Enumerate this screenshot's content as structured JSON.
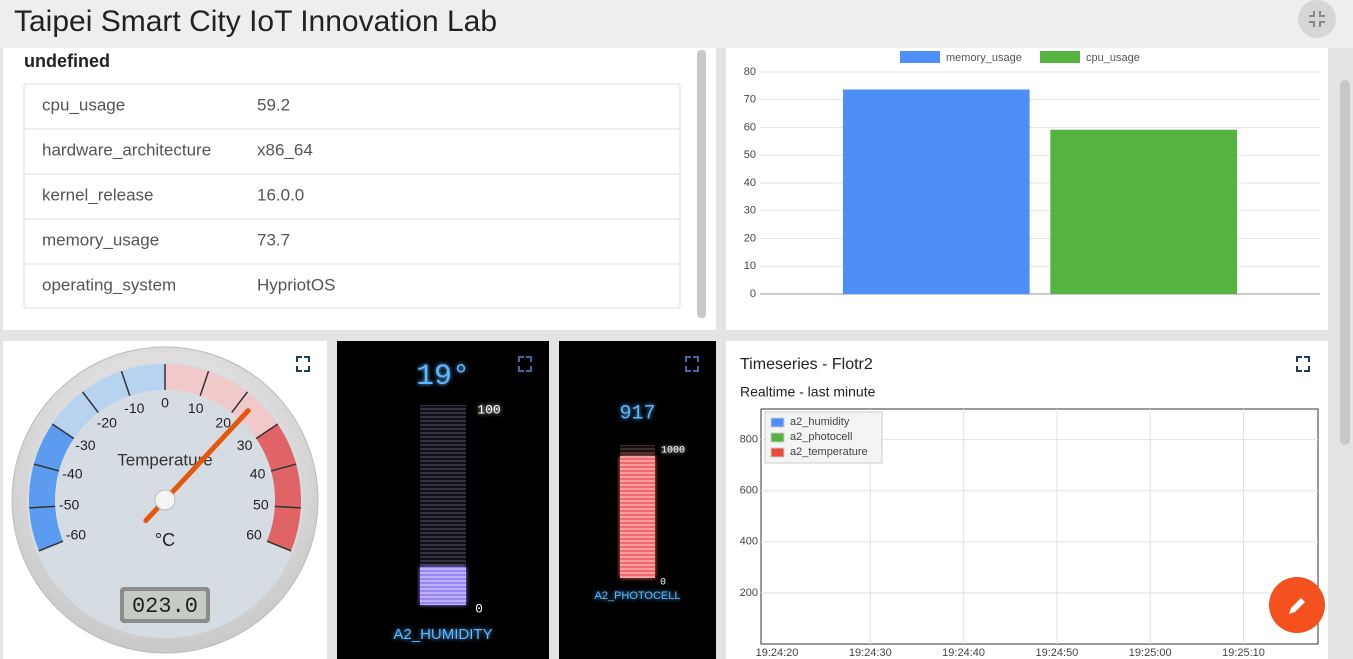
{
  "header": {
    "title": "Taipei Smart City IoT Innovation Lab"
  },
  "info_card": {
    "title": "undefined",
    "rows": [
      [
        "cpu_usage",
        59.2
      ],
      [
        "hardware_architecture",
        "x86_64"
      ],
      [
        "kernel_release",
        "16.0.0"
      ],
      [
        "memory_usage",
        73.7
      ],
      [
        "operating_system",
        "HypriotOS"
      ]
    ]
  },
  "bar_chart": {
    "type": "bar",
    "series": [
      {
        "name": "memory_usage",
        "color": "#4e8ff7",
        "values": [
          73.7
        ]
      },
      {
        "name": "cpu_usage",
        "color": "#55b33f",
        "values": [
          59.2
        ]
      }
    ],
    "ylim": [
      0,
      80
    ],
    "yticks": [
      0,
      10,
      20,
      30,
      40,
      50,
      60,
      70,
      80
    ],
    "grid": true,
    "legend": "top"
  },
  "gauge": {
    "type": "gauge",
    "label": "Temperature",
    "unit": "°C",
    "min": -60,
    "max": 60,
    "ticks": [
      -60,
      -50,
      -40,
      -30,
      -20,
      -10,
      0,
      10,
      20,
      30,
      40,
      50,
      60
    ],
    "bands": [
      {
        "from": -60,
        "to": -30,
        "color": "#5b9bf0"
      },
      {
        "from": -30,
        "to": 0,
        "color": "#b7d3f0"
      },
      {
        "from": 0,
        "to": 30,
        "color": "#f2c9cb"
      },
      {
        "from": 30,
        "to": 60,
        "color": "#e06466"
      }
    ],
    "value": 23,
    "display": "023.0"
  },
  "humidity": {
    "name": "A2_HUMIDITY",
    "value": 19,
    "display": "19°",
    "min": 0,
    "max": 100,
    "color": "#9a86f5"
  },
  "photocell": {
    "name": "A2_PHOTOCELL",
    "value": 917,
    "display": "917",
    "min": 0,
    "max": 1000,
    "color": "#f06a6a"
  },
  "timeseries": {
    "type": "line",
    "title": "Timeseries - Flotr2",
    "subtitle": "Realtime - last minute",
    "series": [
      {
        "name": "a2_humidity",
        "color": "#4e8ff7"
      },
      {
        "name": "a2_photocell",
        "color": "#55b33f"
      },
      {
        "name": "a2_temperature",
        "color": "#e74c3c"
      }
    ],
    "ylim": [
      0,
      920
    ],
    "yticks": [
      200,
      400,
      600,
      800
    ],
    "xticks": [
      "19:24:20",
      "19:24:30",
      "19:24:40",
      "19:24:50",
      "19:25:00",
      "19:25:10"
    ]
  }
}
